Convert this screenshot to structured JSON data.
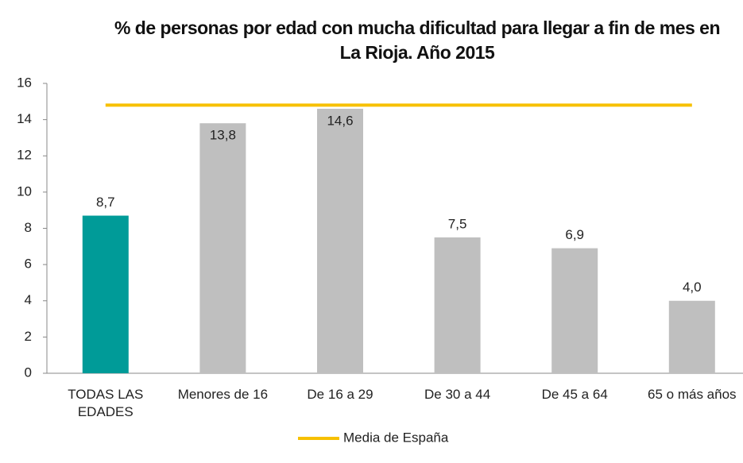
{
  "chart_data": {
    "type": "bar",
    "title": "% de personas por edad con mucha dificultad para llegar a fin de mes en La Rioja. Año 2015",
    "categories": [
      "TODAS LAS EDADES",
      "Menores de 16",
      "De 16 a 29",
      "De 30 a 44",
      "De 45 a 64",
      "65 o más años"
    ],
    "values": [
      8.7,
      13.8,
      14.6,
      7.5,
      6.9,
      4.0
    ],
    "value_labels": [
      "8,7",
      "13,8",
      "14,6",
      "7,5",
      "6,9",
      "4,0"
    ],
    "colors": [
      "#009b98",
      "#bfbfbf",
      "#bfbfbf",
      "#bfbfbf",
      "#bfbfbf",
      "#bfbfbf"
    ],
    "series": [
      {
        "name": "Media de España",
        "type": "line",
        "color": "#f7c000",
        "values": [
          14.8,
          14.8,
          14.8,
          14.8,
          14.8,
          14.8
        ]
      }
    ],
    "ylim": [
      0,
      16
    ],
    "yticks": [
      0,
      2,
      4,
      6,
      8,
      10,
      12,
      14,
      16
    ],
    "grid": false,
    "legend": "bottom"
  }
}
